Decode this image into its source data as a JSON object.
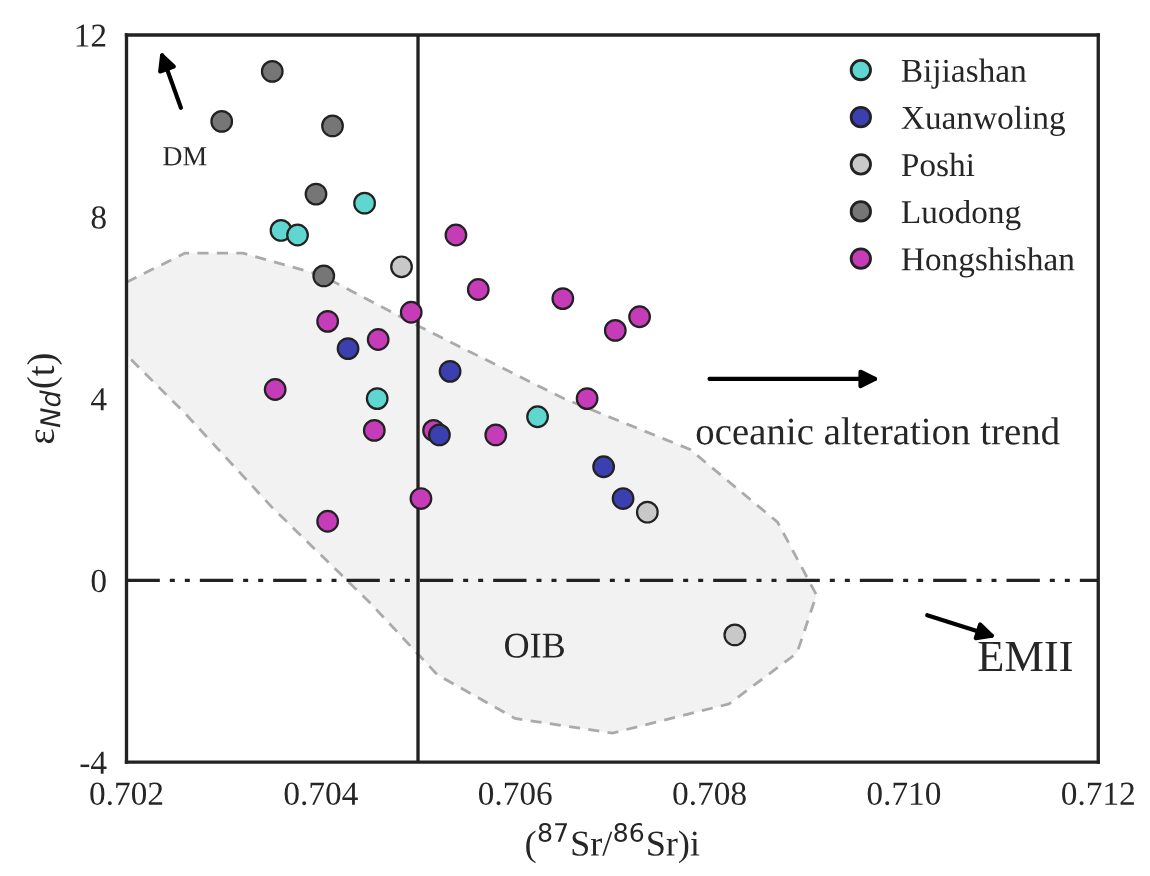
{
  "chart_data": {
    "type": "scatter",
    "xlabel": "($^{87}$Sr/$^{86}$Sr)i",
    "ylabel": "ε$_{Nd}$(t)",
    "xlim": [
      0.702,
      0.712
    ],
    "xticks": [
      {
        "value": 0.702,
        "label": "0.702"
      },
      {
        "value": 0.704,
        "label": "0.704"
      },
      {
        "value": 0.706,
        "label": "0.706"
      },
      {
        "value": 0.708,
        "label": "0.708"
      },
      {
        "value": 0.71,
        "label": "0.710"
      },
      {
        "value": 0.712,
        "label": "0.712"
      }
    ],
    "ylim": [
      -4,
      12
    ],
    "yticks": [
      -4,
      0,
      4,
      8,
      12
    ],
    "marker": "circle",
    "legend": "top right",
    "grid": false,
    "series": [
      {
        "name": "Bijiashan",
        "color": "#5fd6cf",
        "x": [
          0.70359,
          0.70376,
          0.70445,
          0.70458,
          0.70623
        ],
        "values": [
          7.7,
          7.6,
          8.3,
          4.0,
          3.6
        ]
      },
      {
        "name": "Xuanwoling",
        "color": "#3b3fb0",
        "x": [
          0.70428,
          0.70533,
          0.70522,
          0.70691,
          0.70711
        ],
        "values": [
          5.1,
          4.6,
          3.2,
          2.5,
          1.8
        ]
      },
      {
        "name": "Poshi",
        "color": "#c8c8c8",
        "x": [
          0.70483,
          0.70736,
          0.70826
        ],
        "values": [
          6.9,
          1.5,
          -1.2
        ]
      },
      {
        "name": "Luodong",
        "color": "#767676",
        "x": [
          0.7035,
          0.70298,
          0.70412,
          0.70395,
          0.70403
        ],
        "values": [
          11.2,
          10.1,
          10.0,
          8.5,
          6.7
        ]
      },
      {
        "name": "Hongshishan",
        "color": "#c63bb8",
        "x": [
          0.70539,
          0.70562,
          0.70649,
          0.70703,
          0.70728,
          0.70493,
          0.70407,
          0.70459,
          0.70353,
          0.70674,
          0.70455,
          0.70516,
          0.7058,
          0.70503,
          0.70407
        ],
        "values": [
          7.6,
          6.4,
          6.2,
          5.5,
          5.8,
          5.9,
          5.7,
          5.3,
          4.2,
          4.0,
          3.3,
          3.3,
          3.2,
          1.8,
          1.3
        ]
      }
    ],
    "ref_lines": [
      {
        "axis": "x",
        "value": 0.705,
        "line_style": "solid",
        "color": "#222222"
      },
      {
        "axis": "y",
        "value": 0,
        "line_style": "dashed",
        "color": "#222222"
      }
    ],
    "annotations": [
      "DM",
      "oceanic alteration trend",
      "OIB",
      "EMII"
    ]
  }
}
